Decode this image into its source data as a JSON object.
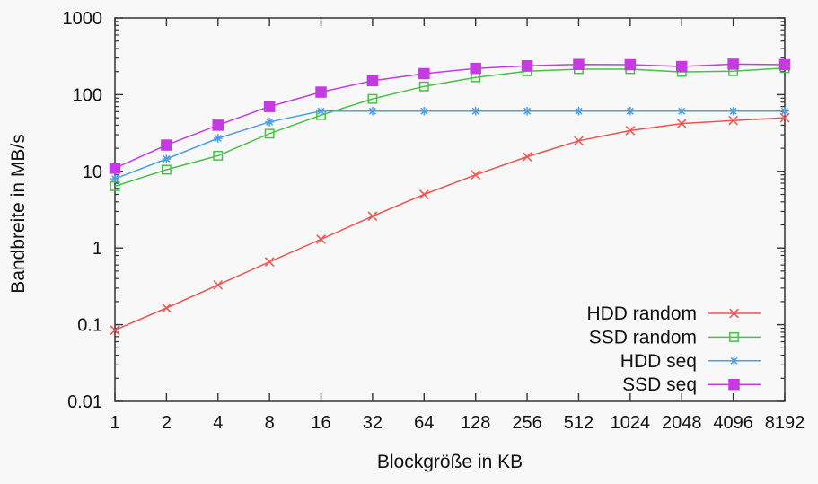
{
  "chart_data": {
    "type": "line",
    "title": "",
    "xlabel": "Blockgröße in KB",
    "ylabel": "Bandbreite in MB/s",
    "x_scale": "log2-categories",
    "y_scale": "log10",
    "ylim": [
      0.01,
      1000
    ],
    "y_tick_labels": [
      "1000",
      "100",
      "10",
      "1",
      "0.1",
      "0.01"
    ],
    "y_tick_values": [
      1000,
      100,
      10,
      1,
      0.1,
      0.01
    ],
    "grid": false,
    "legend_position": "bottom-right-inside",
    "categories": [
      "1",
      "2",
      "4",
      "8",
      "16",
      "32",
      "64",
      "128",
      "256",
      "512",
      "1024",
      "2048",
      "4096",
      "8192"
    ],
    "series": [
      {
        "name": "HDD random",
        "color": "#f0524f",
        "marker": "cross",
        "values": [
          0.085,
          0.165,
          0.33,
          0.66,
          1.3,
          2.6,
          5.0,
          9.0,
          15.5,
          25,
          34,
          42,
          46,
          50
        ]
      },
      {
        "name": "SSD random",
        "color": "#47c247",
        "marker": "square-open",
        "values": [
          6.4,
          10.5,
          16,
          31,
          54,
          88,
          128,
          168,
          202,
          215,
          215,
          198,
          202,
          222
        ]
      },
      {
        "name": "HDD seq",
        "color": "#4b9fe6",
        "marker": "asterisk",
        "values": [
          8,
          14.5,
          27,
          44,
          61,
          61,
          61,
          61,
          61,
          61,
          61,
          61,
          61,
          61
        ]
      },
      {
        "name": "SSD seq",
        "color": "#c43be0",
        "marker": "square-filled",
        "values": [
          11,
          22,
          40,
          70,
          108,
          152,
          188,
          220,
          238,
          248,
          246,
          233,
          250,
          246
        ]
      }
    ]
  },
  "colors": {
    "background": "#f8f8f8",
    "frame": "#333333",
    "text": "#111111"
  }
}
